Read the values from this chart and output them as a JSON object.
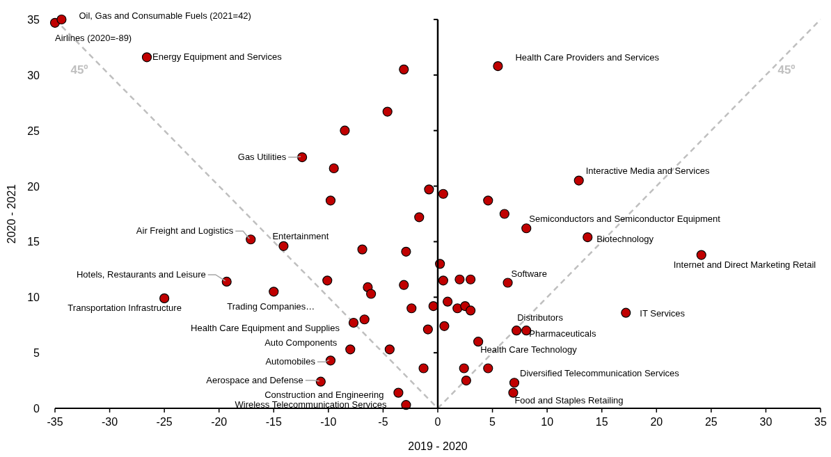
{
  "chart_data": {
    "type": "scatter",
    "xlabel": "2019 - 2020",
    "ylabel": "2020 - 2021",
    "xlim": [
      -35,
      35
    ],
    "ylim": [
      0,
      35
    ],
    "xticks": [
      -35,
      -30,
      -25,
      -20,
      -15,
      -10,
      -5,
      0,
      5,
      10,
      15,
      20,
      25,
      30,
      35
    ],
    "yticks": [
      0,
      5,
      10,
      15,
      20,
      25,
      30,
      35
    ],
    "series": [
      {
        "type": "line",
        "color": "#bfbfbf",
        "line_style": "dashed",
        "marker": "none",
        "x": [
          -35,
          0
        ],
        "values": [
          35,
          0
        ]
      },
      {
        "type": "line",
        "color": "#bfbfbf",
        "line_style": "dashed",
        "marker": "none",
        "x": [
          0,
          35
        ],
        "values": [
          0,
          35
        ]
      },
      {
        "color": "#c00000",
        "marker": "circle",
        "x": [
          -35,
          -34.4,
          -26.6,
          -3.1,
          -4.6,
          -8.5,
          -12.4,
          -9.5,
          -9.8,
          -0.8,
          0.5,
          -1.7,
          4.6,
          6.1,
          8.1,
          12.9,
          5.5,
          13.7,
          24.1,
          -17.1,
          -14.1,
          -6.9,
          -2.9,
          -19.3,
          -25,
          -15,
          -10.1,
          -6.4,
          -6.1,
          -3.1,
          -2.4,
          -0.4,
          -7.7,
          -6.7,
          -0.9,
          -8,
          -4.4,
          -9.8,
          -1.3,
          -10.7,
          -3.6,
          -2.9,
          0.2,
          0.5,
          2,
          3,
          6.4,
          0.9,
          1.8,
          2.5,
          3,
          17.2,
          7.2,
          8.1,
          0.6,
          3.7,
          2.4,
          4.6,
          2.6,
          7,
          6.9
        ],
        "values": [
          34.7,
          35,
          31.6,
          30.5,
          26.7,
          25,
          22.6,
          21.6,
          18.7,
          19.7,
          19.3,
          17.2,
          18.7,
          17.5,
          16.2,
          20.5,
          30.8,
          15.4,
          13.8,
          15.2,
          14.6,
          14.3,
          14.1,
          11.4,
          9.9,
          10.5,
          11.5,
          10.9,
          10.3,
          11.1,
          9,
          9.2,
          7.7,
          8,
          7.1,
          5.3,
          5.3,
          4.3,
          3.6,
          2.4,
          1.4,
          0.3,
          13,
          11.5,
          11.6,
          11.6,
          11.3,
          9.6,
          9,
          9.2,
          8.8,
          8.6,
          7,
          7,
          7.4,
          6,
          3.6,
          3.6,
          2.5,
          2.3,
          1.4
        ]
      }
    ],
    "annotations": [
      {
        "text": "Oil, Gas and Consumable Fuels (2021=42)",
        "x": -34.4,
        "y": 35
      },
      {
        "text": "Airlines (2020=-89)",
        "x": -35,
        "y": 34.7
      },
      {
        "text": "Energy Equipment and Services",
        "x": -26.6,
        "y": 31.6
      },
      {
        "text": "Gas Utilities",
        "x": -12.4,
        "y": 22.6
      },
      {
        "text": "Health Care Providers and Services",
        "x": 5.5,
        "y": 30.8
      },
      {
        "text": "Interactive Media and Services",
        "x": 12.9,
        "y": 20.5
      },
      {
        "text": "Semiconductors and Semiconductor Equipment",
        "x": 8.1,
        "y": 16.2
      },
      {
        "text": "Biotechnology",
        "x": 13.7,
        "y": 15.4
      },
      {
        "text": "Internet and Direct Marketing Retail",
        "x": 24.1,
        "y": 13.8
      },
      {
        "text": "Software",
        "x": 6.4,
        "y": 11.3
      },
      {
        "text": "IT Services",
        "x": 17.2,
        "y": 8.6
      },
      {
        "text": "Distributors",
        "x": 7.2,
        "y": 7
      },
      {
        "text": "Pharmaceuticals",
        "x": 8.1,
        "y": 7
      },
      {
        "text": "Health Care Technology",
        "x": 3.7,
        "y": 6
      },
      {
        "text": "Diversified Telecommunication Services",
        "x": 7,
        "y": 2.3
      },
      {
        "text": "Food and Staples Retailing",
        "x": 6.9,
        "y": 1.4
      },
      {
        "text": "Air Freight and Logistics",
        "x": -17.1,
        "y": 15.2
      },
      {
        "text": "Entertainment",
        "x": -14.1,
        "y": 14.6
      },
      {
        "text": "Hotels, Restaurants and Leisure",
        "x": -19.3,
        "y": 11.4
      },
      {
        "text": "Transportation Infrastructure",
        "x": -25,
        "y": 9.9
      },
      {
        "text": "Trading Companies…",
        "x": -15,
        "y": 10.5
      },
      {
        "text": "Health Care Equipment and Supplies",
        "x": -7.7,
        "y": 7.7
      },
      {
        "text": "Auto Components",
        "x": -8,
        "y": 5.3
      },
      {
        "text": "Automobiles",
        "x": -9.8,
        "y": 4.3
      },
      {
        "text": "Aerospace and Defense",
        "x": -10.7,
        "y": 2.4
      },
      {
        "text": "Construction and Engineering",
        "x": -3.6,
        "y": 1.4
      },
      {
        "text": "Wireless Telecommunication Services",
        "x": -2.9,
        "y": 0.3
      },
      "45º",
      "45º"
    ]
  }
}
